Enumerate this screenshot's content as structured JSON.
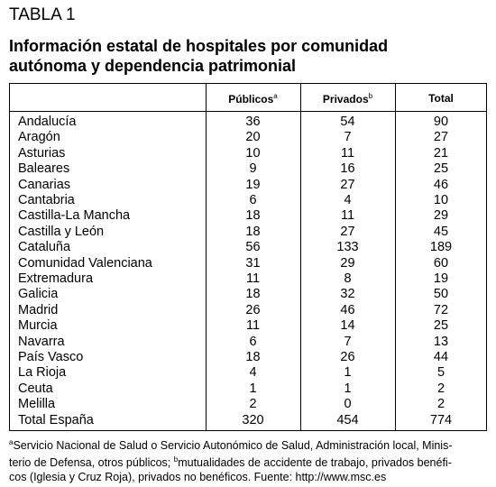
{
  "header": {
    "label": "TABLA 1",
    "title_lines": [
      "Información estatal de hospitales por comunidad",
      "autónoma y dependencia patrimonial"
    ]
  },
  "table": {
    "columns": [
      {
        "text": "Públicos",
        "sup": "a"
      },
      {
        "text": "Privados",
        "sup": "b"
      },
      {
        "text": "Total"
      }
    ],
    "rows": [
      [
        "Andalucía",
        36,
        54,
        90
      ],
      [
        "Aragón",
        20,
        7,
        27
      ],
      [
        "Asturias",
        10,
        11,
        21
      ],
      [
        "Baleares",
        9,
        16,
        25
      ],
      [
        "Canarias",
        19,
        27,
        46
      ],
      [
        "Cantabria",
        6,
        4,
        10
      ],
      [
        "Castilla-La Mancha",
        18,
        11,
        29
      ],
      [
        "Castilla y León",
        18,
        27,
        45
      ],
      [
        "Cataluña",
        56,
        133,
        189
      ],
      [
        "Comunidad Valenciana",
        31,
        29,
        60
      ],
      [
        "Extremadura",
        11,
        8,
        19
      ],
      [
        "Galicia",
        18,
        32,
        50
      ],
      [
        "Madrid",
        26,
        46,
        72
      ],
      [
        "Murcia",
        11,
        14,
        25
      ],
      [
        "Navarra",
        6,
        7,
        13
      ],
      [
        "País Vasco",
        18,
        26,
        44
      ],
      [
        "La Rioja",
        4,
        1,
        5
      ],
      [
        "Ceuta",
        1,
        1,
        2
      ],
      [
        "Melilla",
        2,
        0,
        2
      ],
      [
        "Total España",
        320,
        454,
        774
      ]
    ]
  },
  "footnote": {
    "lines": [
      [
        {
          "sup": "a"
        },
        {
          "text": "Servicio Nacional de Salud o Servicio Autonómico de Salud, Administración local, Minis-"
        }
      ],
      [
        {
          "text": "terio de Defensa, otros públicos; "
        },
        {
          "sup": "b"
        },
        {
          "text": "mutualidades de accidente de trabajo, privados benéfi-"
        }
      ],
      [
        {
          "text": "cos (Iglesia y Cruz Roja), privados no benéficos. Fuente: http://www.msc.es"
        }
      ]
    ]
  }
}
